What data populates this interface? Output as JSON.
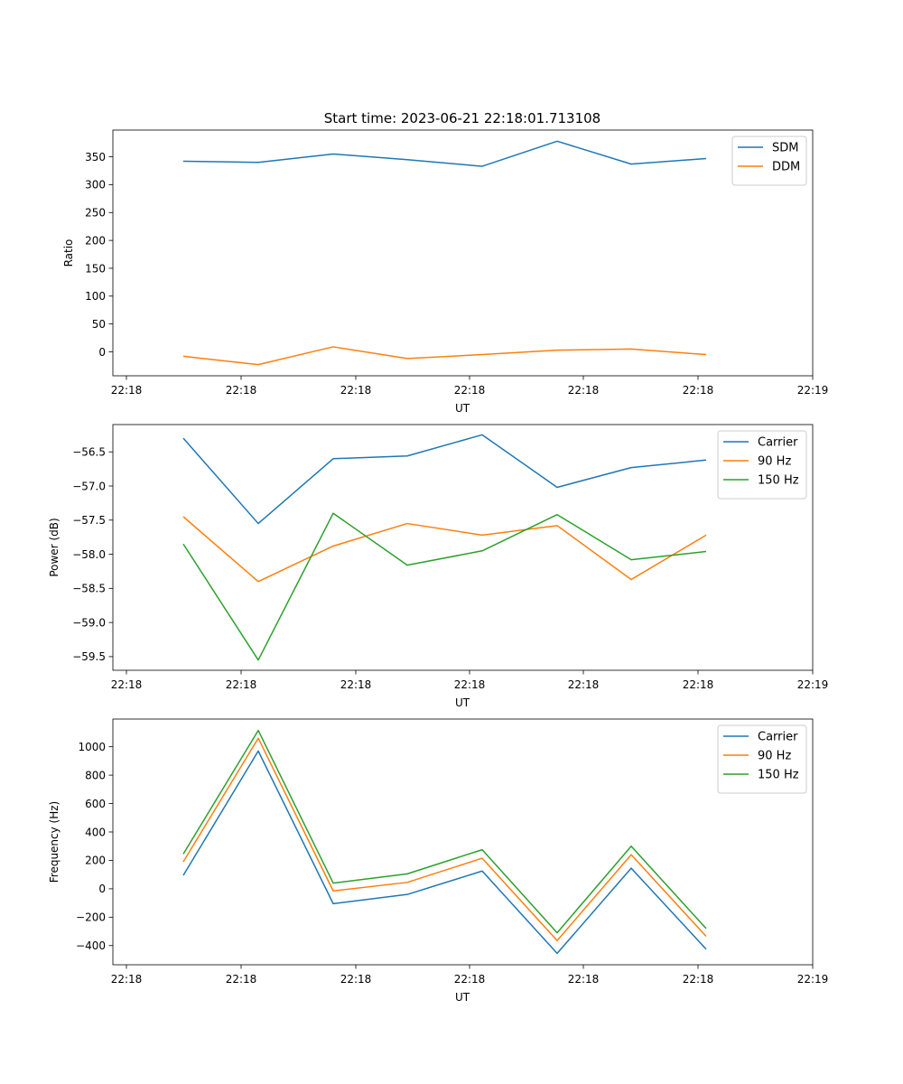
{
  "figure": {
    "title": "Start time: 2023-06-21 22:18:01.713108"
  },
  "colors": {
    "blue": "#1f77b4",
    "orange": "#ff7f0e",
    "green": "#2ca02c"
  },
  "chart_data": [
    {
      "type": "line",
      "xlabel": "UT",
      "ylabel": "Ratio",
      "x_tick_labels": [
        "22:18",
        "22:18",
        "22:18",
        "22:18",
        "22:18",
        "22:18",
        "22:19"
      ],
      "y_ticks": [
        0,
        50,
        100,
        150,
        200,
        250,
        300,
        350
      ],
      "y_tick_labels": [
        "0",
        "50",
        "100",
        "150",
        "200",
        "250",
        "300",
        "350"
      ],
      "ylim": [
        -43,
        398
      ],
      "grid": false,
      "legend_position": "top-right",
      "series": [
        {
          "name": "SDM",
          "color": "#1f77b4",
          "values": [
            342,
            340,
            355,
            345,
            333,
            378,
            337,
            347
          ]
        },
        {
          "name": "DDM",
          "color": "#ff7f0e",
          "values": [
            -8,
            -23,
            9,
            -12,
            -5,
            3,
            5,
            -5
          ]
        }
      ]
    },
    {
      "type": "line",
      "xlabel": "UT",
      "ylabel": "Power (dB)",
      "x_tick_labels": [
        "22:18",
        "22:18",
        "22:18",
        "22:18",
        "22:18",
        "22:18",
        "22:19"
      ],
      "y_ticks": [
        -59.5,
        -59.0,
        -58.5,
        -58.0,
        -57.5,
        -57.0,
        -56.5
      ],
      "y_tick_labels": [
        "−59.5",
        "−59.0",
        "−58.5",
        "−58.0",
        "−57.5",
        "−57.0",
        "−56.5"
      ],
      "ylim": [
        -59.7,
        -56.1
      ],
      "grid": false,
      "legend_position": "top-right",
      "series": [
        {
          "name": "Carrier",
          "color": "#1f77b4",
          "values": [
            -56.3,
            -57.55,
            -56.6,
            -56.56,
            -56.25,
            -57.02,
            -56.73,
            -56.62
          ]
        },
        {
          "name": "90 Hz",
          "color": "#ff7f0e",
          "values": [
            -57.45,
            -58.4,
            -57.88,
            -57.55,
            -57.72,
            -57.58,
            -58.37,
            -57.72
          ]
        },
        {
          "name": "150 Hz",
          "color": "#2ca02c",
          "values": [
            -57.85,
            -59.55,
            -57.4,
            -58.16,
            -57.95,
            -57.42,
            -58.08,
            -57.96
          ]
        }
      ]
    },
    {
      "type": "line",
      "xlabel": "UT",
      "ylabel": "Frequency (Hz)",
      "x_tick_labels": [
        "22:18",
        "22:18",
        "22:18",
        "22:18",
        "22:18",
        "22:18",
        "22:19"
      ],
      "y_ticks": [
        -400,
        -200,
        0,
        200,
        400,
        600,
        800,
        1000
      ],
      "y_tick_labels": [
        "−400",
        "−200",
        "0",
        "200",
        "400",
        "600",
        "800",
        "1000"
      ],
      "ylim": [
        -535,
        1195
      ],
      "grid": false,
      "legend_position": "top-right",
      "series": [
        {
          "name": "Carrier",
          "color": "#1f77b4",
          "values": [
            95,
            970,
            -105,
            -40,
            125,
            -455,
            145,
            -425
          ]
        },
        {
          "name": "90 Hz",
          "color": "#ff7f0e",
          "values": [
            190,
            1060,
            -15,
            45,
            215,
            -365,
            240,
            -335
          ]
        },
        {
          "name": "150 Hz",
          "color": "#2ca02c",
          "values": [
            245,
            1115,
            40,
            105,
            275,
            -310,
            300,
            -280
          ]
        }
      ]
    }
  ]
}
